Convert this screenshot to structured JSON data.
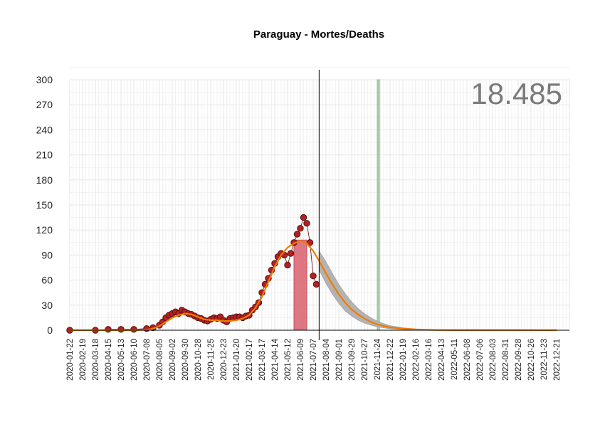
{
  "chart_data": {
    "type": "scatter",
    "title": "Paraguay - Mortes/Deaths",
    "total_label": "18.485",
    "xlabel": "",
    "ylabel": "",
    "ylim": [
      0,
      300
    ],
    "y_ticks": [
      0,
      30,
      60,
      90,
      120,
      150,
      180,
      210,
      240,
      270,
      300
    ],
    "xlim": [
      "2020-01-22",
      "2023-01-18"
    ],
    "x_tick_labels": [
      "2020-01-22",
      "2020-02-19",
      "2020-03-18",
      "2020-04-15",
      "2020-05-13",
      "2020-06-10",
      "2020-07-08",
      "2020-08-05",
      "2020-09-02",
      "2020-09-30",
      "2020-10-28",
      "2020-11-25",
      "2020-12-23",
      "2021-01-20",
      "2021-02-17",
      "2021-03-17",
      "2021-04-14",
      "2021-05-12",
      "2021-06-09",
      "2021-07-07",
      "2021-08-04",
      "2021-09-01",
      "2021-09-29",
      "2021-10-27",
      "2021-11-24",
      "2021-12-22",
      "2022-01-19",
      "2022-02-16",
      "2022-03-16",
      "2022-04-13",
      "2022-05-11",
      "2022-06-08",
      "2022-07-06",
      "2022-08-03",
      "2022-08-31",
      "2022-09-28",
      "2022-10-26",
      "2022-11-23",
      "2022-12-21"
    ],
    "grid": true,
    "current_date": "2021-07-20",
    "peak_band": {
      "start": "2021-05-26",
      "end": "2021-06-23",
      "value": 108
    },
    "highlight_band": {
      "start": "2021-11-24",
      "end": "2021-11-29",
      "value": 300
    },
    "observed_daily": [
      {
        "date": "2020-01-22",
        "value": 0
      },
      {
        "date": "2020-03-18",
        "value": 0
      },
      {
        "date": "2020-04-15",
        "value": 1
      },
      {
        "date": "2020-05-13",
        "value": 1
      },
      {
        "date": "2020-06-10",
        "value": 1
      },
      {
        "date": "2020-07-08",
        "value": 2
      },
      {
        "date": "2020-07-22",
        "value": 3
      },
      {
        "date": "2020-08-05",
        "value": 6
      },
      {
        "date": "2020-08-12",
        "value": 10
      },
      {
        "date": "2020-08-19",
        "value": 15
      },
      {
        "date": "2020-08-26",
        "value": 18
      },
      {
        "date": "2020-09-02",
        "value": 20
      },
      {
        "date": "2020-09-09",
        "value": 22
      },
      {
        "date": "2020-09-16",
        "value": 20
      },
      {
        "date": "2020-09-23",
        "value": 24
      },
      {
        "date": "2020-09-30",
        "value": 22
      },
      {
        "date": "2020-10-07",
        "value": 20
      },
      {
        "date": "2020-10-14",
        "value": 19
      },
      {
        "date": "2020-10-21",
        "value": 17
      },
      {
        "date": "2020-10-28",
        "value": 15
      },
      {
        "date": "2020-11-04",
        "value": 14
      },
      {
        "date": "2020-11-11",
        "value": 12
      },
      {
        "date": "2020-11-18",
        "value": 11
      },
      {
        "date": "2020-11-25",
        "value": 13
      },
      {
        "date": "2020-12-02",
        "value": 15
      },
      {
        "date": "2020-12-09",
        "value": 14
      },
      {
        "date": "2020-12-16",
        "value": 16
      },
      {
        "date": "2020-12-23",
        "value": 12
      },
      {
        "date": "2020-12-30",
        "value": 10
      },
      {
        "date": "2021-01-06",
        "value": 14
      },
      {
        "date": "2021-01-13",
        "value": 15
      },
      {
        "date": "2021-01-20",
        "value": 16
      },
      {
        "date": "2021-01-27",
        "value": 16
      },
      {
        "date": "2021-02-03",
        "value": 15
      },
      {
        "date": "2021-02-10",
        "value": 17
      },
      {
        "date": "2021-02-17",
        "value": 18
      },
      {
        "date": "2021-02-24",
        "value": 24
      },
      {
        "date": "2021-03-03",
        "value": 28
      },
      {
        "date": "2021-03-10",
        "value": 33
      },
      {
        "date": "2021-03-17",
        "value": 45
      },
      {
        "date": "2021-03-24",
        "value": 55
      },
      {
        "date": "2021-03-31",
        "value": 62
      },
      {
        "date": "2021-04-07",
        "value": 72
      },
      {
        "date": "2021-04-14",
        "value": 80
      },
      {
        "date": "2021-04-21",
        "value": 88
      },
      {
        "date": "2021-04-28",
        "value": 92
      },
      {
        "date": "2021-05-05",
        "value": 90
      },
      {
        "date": "2021-05-12",
        "value": 78
      },
      {
        "date": "2021-05-19",
        "value": 92
      },
      {
        "date": "2021-05-26",
        "value": 105
      },
      {
        "date": "2021-06-02",
        "value": 115
      },
      {
        "date": "2021-06-09",
        "value": 122
      },
      {
        "date": "2021-06-16",
        "value": 135
      },
      {
        "date": "2021-06-23",
        "value": 128
      },
      {
        "date": "2021-06-30",
        "value": 105
      },
      {
        "date": "2021-07-07",
        "value": 65
      },
      {
        "date": "2021-07-14",
        "value": 55
      }
    ],
    "trend": [
      {
        "date": "2020-01-22",
        "value": 0
      },
      {
        "date": "2020-06-10",
        "value": 0
      },
      {
        "date": "2020-07-08",
        "value": 0.5
      },
      {
        "date": "2020-07-22",
        "value": 2
      },
      {
        "date": "2020-08-05",
        "value": 5
      },
      {
        "date": "2020-08-19",
        "value": 10
      },
      {
        "date": "2020-09-02",
        "value": 15
      },
      {
        "date": "2020-09-16",
        "value": 18
      },
      {
        "date": "2020-09-30",
        "value": 20
      },
      {
        "date": "2020-10-14",
        "value": 19
      },
      {
        "date": "2020-10-28",
        "value": 16
      },
      {
        "date": "2020-11-11",
        "value": 13
      },
      {
        "date": "2020-11-25",
        "value": 12
      },
      {
        "date": "2020-12-09",
        "value": 12
      },
      {
        "date": "2020-12-23",
        "value": 11
      },
      {
        "date": "2021-01-06",
        "value": 11
      },
      {
        "date": "2021-01-20",
        "value": 12
      },
      {
        "date": "2021-02-03",
        "value": 14
      },
      {
        "date": "2021-02-17",
        "value": 18
      },
      {
        "date": "2021-03-03",
        "value": 27
      },
      {
        "date": "2021-03-17",
        "value": 40
      },
      {
        "date": "2021-03-31",
        "value": 58
      },
      {
        "date": "2021-04-14",
        "value": 76
      },
      {
        "date": "2021-04-28",
        "value": 90
      },
      {
        "date": "2021-05-12",
        "value": 99
      },
      {
        "date": "2021-05-26",
        "value": 104
      },
      {
        "date": "2021-06-09",
        "value": 107
      },
      {
        "date": "2021-06-23",
        "value": 104
      },
      {
        "date": "2021-07-07",
        "value": 95
      },
      {
        "date": "2021-07-21",
        "value": 82
      },
      {
        "date": "2021-08-04",
        "value": 68
      },
      {
        "date": "2021-08-18",
        "value": 55
      },
      {
        "date": "2021-09-01",
        "value": 43
      },
      {
        "date": "2021-09-15",
        "value": 33
      },
      {
        "date": "2021-09-29",
        "value": 25
      },
      {
        "date": "2021-10-13",
        "value": 19
      },
      {
        "date": "2021-10-27",
        "value": 14
      },
      {
        "date": "2021-11-10",
        "value": 10
      },
      {
        "date": "2021-11-24",
        "value": 7
      },
      {
        "date": "2021-12-08",
        "value": 5
      },
      {
        "date": "2021-12-22",
        "value": 3.5
      },
      {
        "date": "2022-01-19",
        "value": 1.8
      },
      {
        "date": "2022-02-16",
        "value": 0.9
      },
      {
        "date": "2022-03-16",
        "value": 0.4
      },
      {
        "date": "2022-04-13",
        "value": 0.2
      },
      {
        "date": "2022-06-08",
        "value": 0.05
      },
      {
        "date": "2022-12-21",
        "value": 0
      }
    ],
    "forecast_upper": [
      {
        "date": "2021-07-20",
        "value": 95
      },
      {
        "date": "2021-08-04",
        "value": 82
      },
      {
        "date": "2021-08-18",
        "value": 68
      },
      {
        "date": "2021-09-01",
        "value": 55
      },
      {
        "date": "2021-09-15",
        "value": 44
      },
      {
        "date": "2021-09-29",
        "value": 34
      },
      {
        "date": "2021-10-13",
        "value": 26
      },
      {
        "date": "2021-10-27",
        "value": 20
      },
      {
        "date": "2021-11-10",
        "value": 15
      },
      {
        "date": "2021-11-24",
        "value": 11
      },
      {
        "date": "2021-12-08",
        "value": 8
      },
      {
        "date": "2021-12-22",
        "value": 5.5
      },
      {
        "date": "2022-01-19",
        "value": 3
      },
      {
        "date": "2022-02-16",
        "value": 1.5
      },
      {
        "date": "2022-03-16",
        "value": 0.8
      },
      {
        "date": "2022-04-13",
        "value": 0.3
      },
      {
        "date": "2022-06-08",
        "value": 0.1
      }
    ],
    "forecast_lower": [
      {
        "date": "2021-07-20",
        "value": 72
      },
      {
        "date": "2021-08-04",
        "value": 56
      },
      {
        "date": "2021-08-18",
        "value": 43
      },
      {
        "date": "2021-09-01",
        "value": 32
      },
      {
        "date": "2021-09-15",
        "value": 23
      },
      {
        "date": "2021-09-29",
        "value": 17
      },
      {
        "date": "2021-10-13",
        "value": 12
      },
      {
        "date": "2021-10-27",
        "value": 8.5
      },
      {
        "date": "2021-11-10",
        "value": 6
      },
      {
        "date": "2021-11-24",
        "value": 4
      },
      {
        "date": "2021-12-08",
        "value": 2.8
      },
      {
        "date": "2021-12-22",
        "value": 1.8
      },
      {
        "date": "2022-01-19",
        "value": 0.8
      },
      {
        "date": "2022-02-16",
        "value": 0.4
      },
      {
        "date": "2022-03-16",
        "value": 0.15
      },
      {
        "date": "2022-04-13",
        "value": 0.05
      },
      {
        "date": "2022-06-08",
        "value": 0
      }
    ],
    "colors": {
      "points_fill": "#b22222",
      "points_stroke": "#5a0f0f",
      "trend": "#f07b00",
      "forecast_band": "#b3b3b3",
      "peak_band": "#d9606d",
      "highlight_band": "#8cc68c",
      "grid": "#e6e6e6",
      "total_label": "#7a7a7a"
    }
  }
}
